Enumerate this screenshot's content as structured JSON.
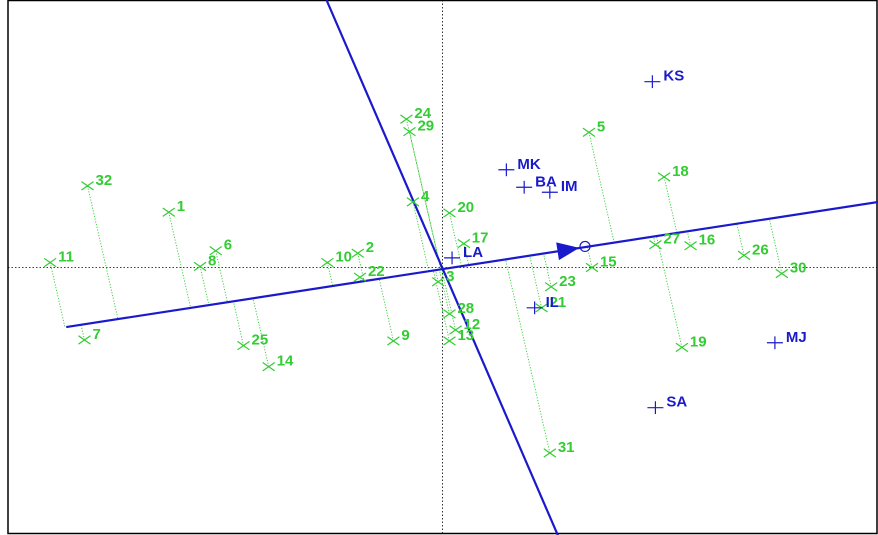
{
  "chart_data": {
    "type": "scatter",
    "title": "",
    "xlabel": "",
    "ylabel": "",
    "xlim": [
      -1.0,
      1.0
    ],
    "ylim": [
      -0.75,
      0.75
    ],
    "grid": false,
    "colors": {
      "observations": "#33cc33",
      "variables": "#1a1acc",
      "axes": "#000000"
    },
    "observations": [
      {
        "label": "1",
        "x": -0.63,
        "y": 0.155
      },
      {
        "label": "2",
        "x": -0.195,
        "y": 0.04
      },
      {
        "label": "3",
        "x": -0.01,
        "y": -0.04
      },
      {
        "label": "4",
        "x": -0.068,
        "y": 0.184
      },
      {
        "label": "5",
        "x": 0.337,
        "y": 0.379
      },
      {
        "label": "6",
        "x": -0.522,
        "y": 0.047
      },
      {
        "label": "7",
        "x": -0.824,
        "y": -0.203
      },
      {
        "label": "8",
        "x": -0.558,
        "y": 0.003
      },
      {
        "label": "9",
        "x": -0.113,
        "y": -0.206
      },
      {
        "label": "10",
        "x": -0.265,
        "y": 0.014
      },
      {
        "label": "11",
        "x": -0.903,
        "y": 0.014
      },
      {
        "label": "12",
        "x": 0.03,
        "y": -0.175
      },
      {
        "label": "13",
        "x": 0.016,
        "y": -0.206
      },
      {
        "label": "14",
        "x": -0.4,
        "y": -0.278
      },
      {
        "label": "15",
        "x": 0.344,
        "y": 0.0
      },
      {
        "label": "16",
        "x": 0.571,
        "y": 0.061
      },
      {
        "label": "17",
        "x": 0.049,
        "y": 0.067
      },
      {
        "label": "18",
        "x": 0.51,
        "y": 0.254
      },
      {
        "label": "19",
        "x": 0.551,
        "y": -0.224
      },
      {
        "label": "20",
        "x": 0.016,
        "y": 0.153
      },
      {
        "label": "21",
        "x": 0.228,
        "y": -0.113
      },
      {
        "label": "22",
        "x": -0.19,
        "y": -0.027
      },
      {
        "label": "23",
        "x": 0.25,
        "y": -0.054
      },
      {
        "label": "24",
        "x": -0.083,
        "y": 0.416
      },
      {
        "label": "25",
        "x": -0.458,
        "y": -0.219
      },
      {
        "label": "26",
        "x": 0.694,
        "y": 0.034
      },
      {
        "label": "27",
        "x": 0.49,
        "y": 0.064
      },
      {
        "label": "28",
        "x": 0.016,
        "y": -0.13
      },
      {
        "label": "29",
        "x": -0.076,
        "y": 0.381
      },
      {
        "label": "30",
        "x": 0.781,
        "y": -0.017
      },
      {
        "label": "31",
        "x": 0.247,
        "y": -0.52
      },
      {
        "label": "32",
        "x": -0.817,
        "y": 0.229
      }
    ],
    "variables": [
      {
        "label": "KS",
        "x": 0.483,
        "y": 0.521
      },
      {
        "label": "MK",
        "x": 0.147,
        "y": 0.274
      },
      {
        "label": "BA",
        "x": 0.188,
        "y": 0.225
      },
      {
        "label": "IM",
        "x": 0.247,
        "y": 0.211
      },
      {
        "label": "LA",
        "x": 0.022,
        "y": 0.027
      },
      {
        "label": "IL",
        "x": 0.212,
        "y": -0.113
      },
      {
        "label": "MJ",
        "x": 0.765,
        "y": -0.211
      },
      {
        "label": "SA",
        "x": 0.49,
        "y": -0.393
      }
    ],
    "projection_axis": {
      "from": [
        -0.866,
        -0.167
      ],
      "to": [
        1.222,
        0.225
      ],
      "arrow_at": [
        0.283,
        0.049
      ],
      "origin_marker": [
        0.328,
        0.059
      ]
    },
    "perpendicular_axis": {
      "from": [
        -0.267,
        0.75
      ],
      "to": [
        0.283,
        -0.8
      ]
    },
    "reference_lines": {
      "x0": 0,
      "y0": 0
    }
  }
}
